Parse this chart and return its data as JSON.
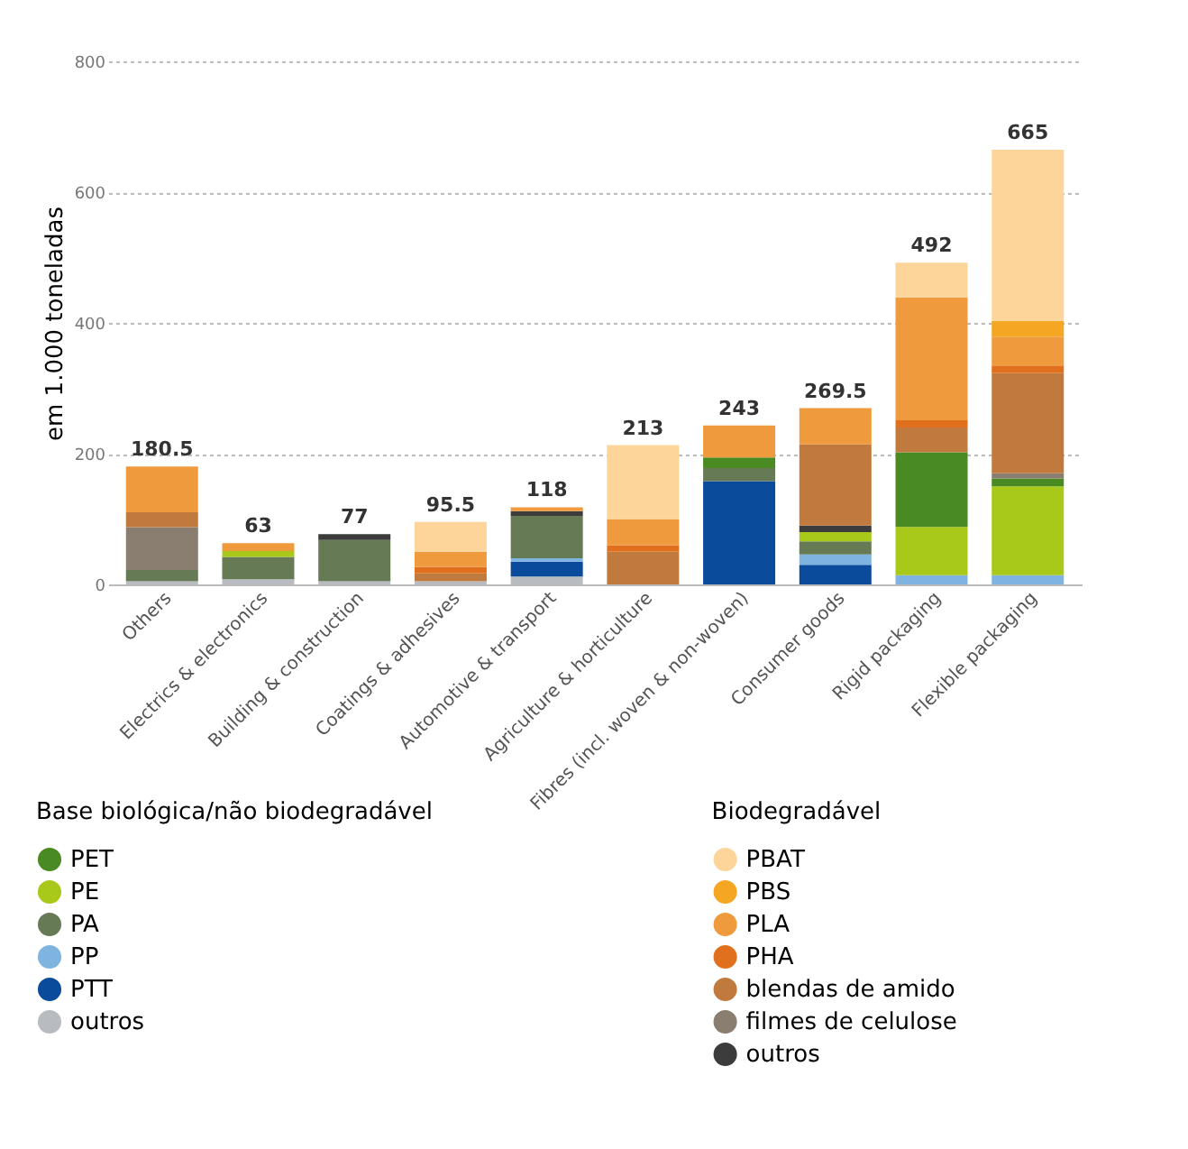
{
  "chart_data": {
    "type": "bar",
    "stacked": true,
    "ylabel": "em 1.000 toneladas",
    "categories": [
      "Others",
      "Electrics & electronics",
      "Building & construction",
      "Coatings & adhesives",
      "Automotive & transport",
      "Agriculture & horticulture",
      "Fibres (incl. woven & non-woven)",
      "Consumer goods",
      "Rigid packaging",
      "Flexible packaging"
    ],
    "legend_title": [
      "Base biológica/não biodegradável",
      "Biodegradável"
    ],
    "series": [
      {
        "name": "outros",
        "color": "#b8bcc0",
        "values": [
          5,
          8,
          5,
          5,
          12,
          0,
          0,
          0,
          0,
          0
        ]
      },
      {
        "name": "PTT",
        "color": "#0a4b9c",
        "values": [
          0,
          0,
          0,
          0,
          23,
          0,
          158,
          30,
          0,
          0
        ]
      },
      {
        "name": "PP",
        "color": "#7fb4e0",
        "values": [
          0,
          0,
          0,
          0,
          5,
          0,
          0,
          16,
          14,
          14
        ]
      },
      {
        "name": "PA",
        "color": "#667a55",
        "values": [
          17,
          34,
          63,
          0,
          65,
          0,
          20,
          20,
          0,
          0
        ]
      },
      {
        "name": "PE",
        "color": "#a8c81a",
        "values": [
          0,
          9,
          0,
          0,
          0,
          0,
          0,
          14,
          74,
          136
        ]
      },
      {
        "name": "PET",
        "color": "#4a8a22",
        "values": [
          0,
          0,
          0,
          0,
          0,
          0,
          16,
          0,
          114,
          12
        ]
      },
      {
        "name": "outros",
        "color": "#3c3c3c",
        "values": [
          0,
          0,
          9,
          0,
          7,
          0,
          0,
          10,
          0,
          0
        ]
      },
      {
        "name": "filmes de celulose",
        "color": "#8a7e70",
        "values": [
          65.5,
          0,
          0,
          0,
          0,
          0,
          0,
          0,
          0,
          8
        ]
      },
      {
        "name": "blendas de amido",
        "color": "#c07a3e",
        "values": [
          23,
          0,
          0,
          12,
          0,
          50,
          0,
          124,
          38,
          153
        ]
      },
      {
        "name": "PHA",
        "color": "#e0701e",
        "values": [
          0,
          0,
          0,
          10,
          0,
          10,
          0,
          0,
          11,
          12
        ]
      },
      {
        "name": "PLA",
        "color": "#f09a3e",
        "values": [
          70,
          12,
          0,
          23,
          6,
          40,
          49,
          55.5,
          188,
          44
        ]
      },
      {
        "name": "PBS",
        "color": "#f5a623",
        "values": [
          0,
          0,
          0,
          0,
          0,
          0,
          0,
          0,
          0,
          24
        ]
      },
      {
        "name": "PBAT",
        "color": "#fdd59a",
        "values": [
          0,
          0,
          0,
          45.5,
          0,
          113,
          0,
          0,
          53,
          262
        ]
      }
    ],
    "totals": [
      "180.5",
      "63",
      "77",
      "95.5",
      "118",
      "213",
      "243",
      "269.5",
      "492",
      "665"
    ],
    "ylim": [
      0,
      800
    ],
    "yticks": [
      0,
      200,
      400,
      600,
      800
    ],
    "grid": "y",
    "legend": "bottom"
  }
}
